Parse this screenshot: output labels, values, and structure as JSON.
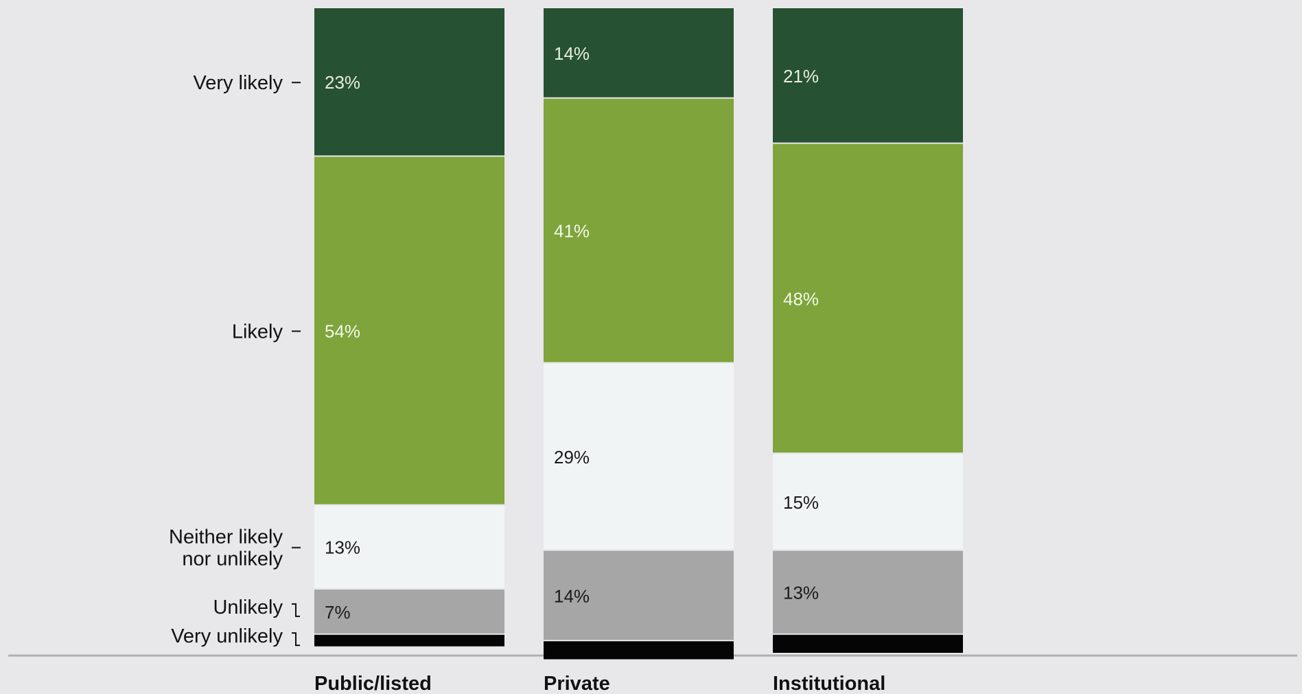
{
  "chart_data": {
    "type": "bar",
    "stacked": true,
    "categories": [
      "Public/listed",
      "Private",
      "Institutional"
    ],
    "series": [
      {
        "name": "Very likely",
        "values": [
          23,
          14,
          21
        ],
        "color": "#275133",
        "label_color": "#e8f0dc"
      },
      {
        "name": "Likely",
        "values": [
          54,
          41,
          48
        ],
        "color": "#7ea43b",
        "label_color": "#f3f7ea"
      },
      {
        "name": "Neither likely nor unlikely",
        "values": [
          13,
          29,
          15
        ],
        "color": "#f0f4f4",
        "label_color": "#1a1a1a"
      },
      {
        "name": "Unlikely",
        "values": [
          7,
          14,
          13
        ],
        "color": "#a6a6a6",
        "label_color": "#1a1a1a"
      },
      {
        "name": "Very unlikely",
        "values": [
          2,
          3,
          3
        ],
        "color": "#050505",
        "label_color": "#ffffff"
      }
    ],
    "data_labels": [
      [
        "23%",
        "14%",
        "21%"
      ],
      [
        "54%",
        "41%",
        "48%"
      ],
      [
        "13%",
        "29%",
        "15%"
      ],
      [
        "7%",
        "14%",
        "13%"
      ],
      [
        "",
        "",
        ""
      ]
    ],
    "legend_lines": [
      [
        "Very likely"
      ],
      [
        "Likely"
      ],
      [
        "Neither likely",
        "nor unlikely"
      ],
      [
        "Unlikely"
      ],
      [
        "Very unlikely"
      ]
    ],
    "legend_placement": "left",
    "grid": false,
    "title": "",
    "xlabel": "",
    "ylabel": "",
    "ylim": [
      0,
      100
    ]
  }
}
